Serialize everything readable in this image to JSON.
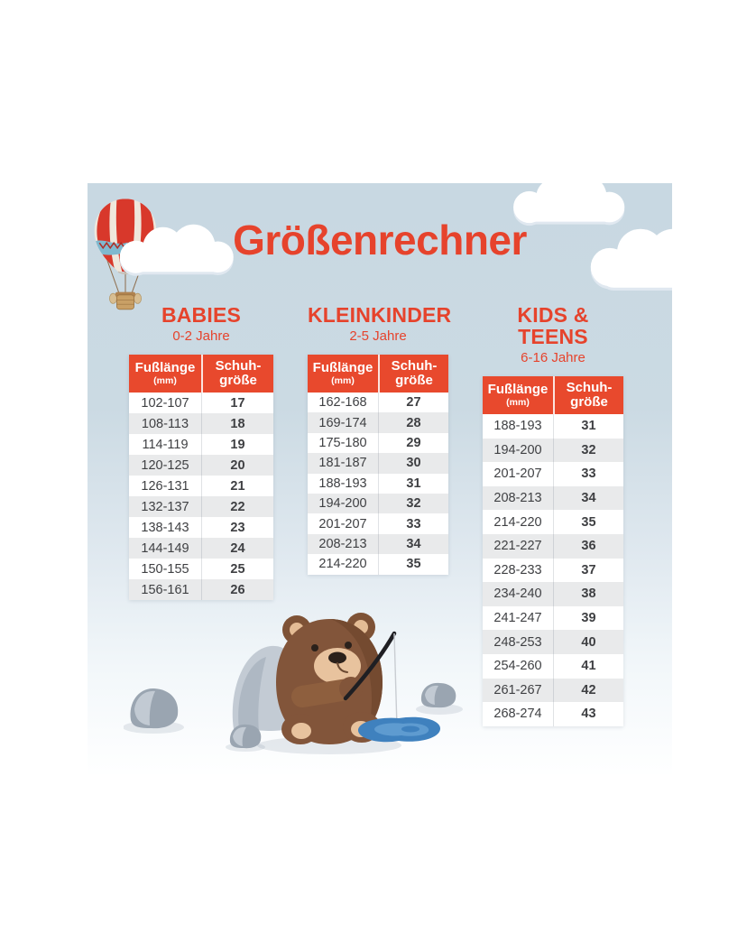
{
  "title": "Größenrechner",
  "accent_color": "#E6432C",
  "table_header": {
    "foot_length_label": "Fußlänge",
    "foot_length_unit": "(mm)",
    "shoe_size_line1": "Schuh-",
    "shoe_size_line2": "größe"
  },
  "groups": [
    {
      "title": "BABIES",
      "subtitle": "0-2 Jahre",
      "rows": [
        [
          "102-107",
          "17"
        ],
        [
          "108-113",
          "18"
        ],
        [
          "114-119",
          "19"
        ],
        [
          "120-125",
          "20"
        ],
        [
          "126-131",
          "21"
        ],
        [
          "132-137",
          "22"
        ],
        [
          "138-143",
          "23"
        ],
        [
          "144-149",
          "24"
        ],
        [
          "150-155",
          "25"
        ],
        [
          "156-161",
          "26"
        ]
      ]
    },
    {
      "title": "KLEINKINDER",
      "subtitle": "2-5 Jahre",
      "rows": [
        [
          "162-168",
          "27"
        ],
        [
          "169-174",
          "28"
        ],
        [
          "175-180",
          "29"
        ],
        [
          "181-187",
          "30"
        ],
        [
          "188-193",
          "31"
        ],
        [
          "194-200",
          "32"
        ],
        [
          "201-207",
          "33"
        ],
        [
          "208-213",
          "34"
        ],
        [
          "214-220",
          "35"
        ]
      ]
    },
    {
      "title": "KIDS & TEENS",
      "subtitle": "6-16 Jahre",
      "rows": [
        [
          "188-193",
          "31"
        ],
        [
          "194-200",
          "32"
        ],
        [
          "201-207",
          "33"
        ],
        [
          "208-213",
          "34"
        ],
        [
          "214-220",
          "35"
        ],
        [
          "221-227",
          "36"
        ],
        [
          "228-233",
          "37"
        ],
        [
          "234-240",
          "38"
        ],
        [
          "241-247",
          "39"
        ],
        [
          "248-253",
          "40"
        ],
        [
          "254-260",
          "41"
        ],
        [
          "261-267",
          "42"
        ],
        [
          "268-274",
          "43"
        ]
      ]
    }
  ],
  "illustrations": {
    "top_left": "hot-air-balloon",
    "sky": "clouds",
    "bottom_center": "teddy-bear-fishing",
    "ground": "rocks",
    "water": "puddle"
  },
  "colors": {
    "header_bg": "#E8492D",
    "header_text": "#FFFFFF",
    "row_alt_bg": "#E9EAEB",
    "row_text": "#3F4043",
    "sky_top": "#C8D8E2",
    "puddle": "#3F81BE"
  }
}
